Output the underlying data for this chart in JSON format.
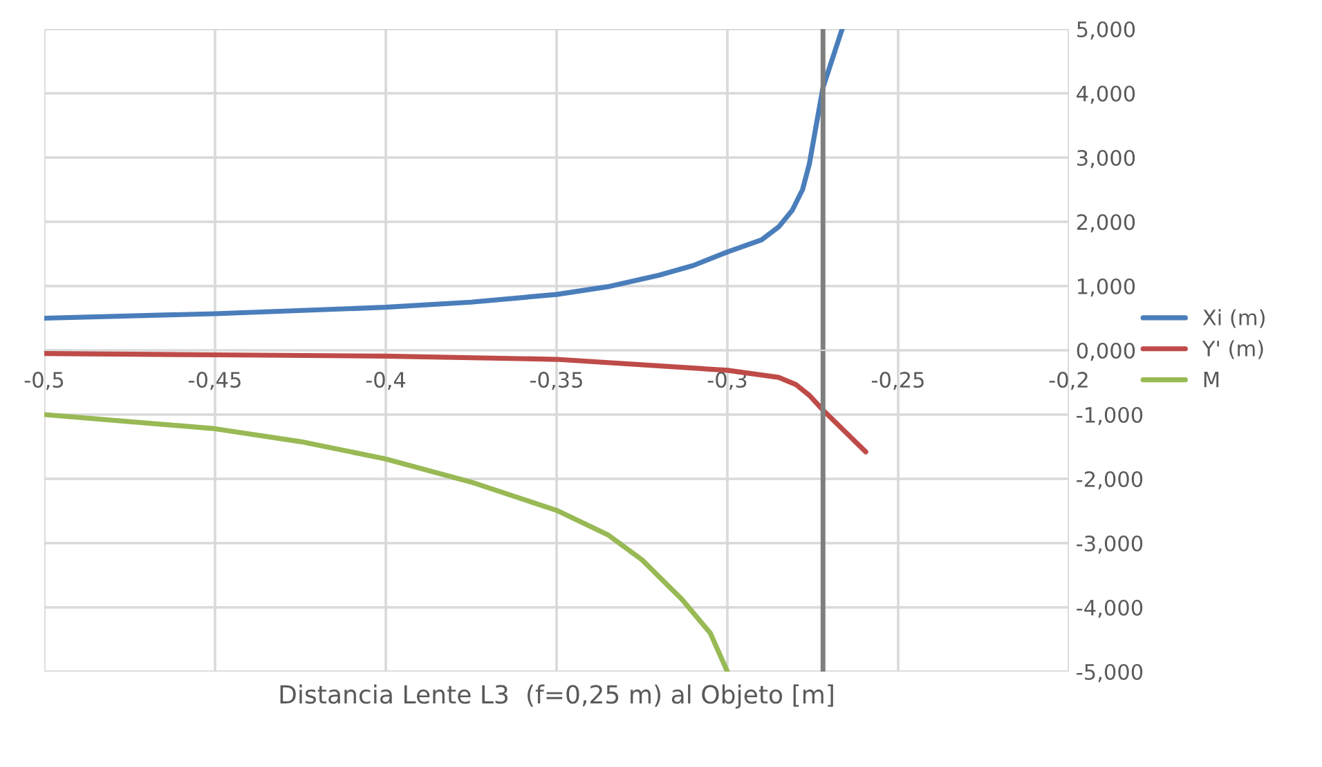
{
  "chart_data": {
    "type": "line",
    "xlabel": "Distancia Lente L3  (f=0,25 m) al Objeto [m]",
    "series": [
      {
        "name": "Xi (m)",
        "color": "#4a7ebb",
        "x": [
          -0.5,
          -0.45,
          -0.4,
          -0.375,
          -0.35,
          -0.335,
          -0.32,
          -0.31,
          -0.3,
          -0.29,
          -0.285,
          -0.281,
          -0.278,
          -0.276,
          -0.274,
          -0.272,
          -0.2664
        ],
        "values": [
          0.5,
          0.57,
          0.67,
          0.75,
          0.87,
          0.99,
          1.17,
          1.32,
          1.53,
          1.72,
          1.92,
          2.18,
          2.5,
          2.9,
          3.5,
          4.09,
          5.0
        ]
      },
      {
        "name": "Y' (m)",
        "color": "#be4b48",
        "x": [
          -0.5,
          -0.45,
          -0.4,
          -0.35,
          -0.3,
          -0.285,
          -0.28,
          -0.276,
          -0.272,
          -0.2595
        ],
        "values": [
          -0.05,
          -0.07,
          -0.09,
          -0.14,
          -0.31,
          -0.42,
          -0.53,
          -0.7,
          -0.93,
          -1.58
        ]
      },
      {
        "name": "M",
        "color": "#98b954",
        "x": [
          -0.5,
          -0.45,
          -0.425,
          -0.4,
          -0.375,
          -0.35,
          -0.335,
          -0.325,
          -0.3134,
          -0.305,
          -0.3
        ],
        "values": [
          -1.0,
          -1.22,
          -1.42,
          -1.69,
          -2.05,
          -2.49,
          -2.87,
          -3.26,
          -3.87,
          -4.4,
          -5.0
        ]
      }
    ],
    "xlim": [
      -0.5,
      -0.2
    ],
    "ylim": [
      -5,
      5
    ],
    "xticks": [
      {
        "value": -0.5,
        "label": "-0,5"
      },
      {
        "value": -0.45,
        "label": "-0,45"
      },
      {
        "value": -0.4,
        "label": "-0,4"
      },
      {
        "value": -0.35,
        "label": "-0,35"
      },
      {
        "value": -0.3,
        "label": "-0,3"
      },
      {
        "value": -0.25,
        "label": "-0,25"
      },
      {
        "value": -0.2,
        "label": "-0,2"
      }
    ],
    "yticks": [
      {
        "value": -5,
        "label": "-5,000"
      },
      {
        "value": -4,
        "label": "-4,000"
      },
      {
        "value": -3,
        "label": "-3,000"
      },
      {
        "value": -2,
        "label": "-2,000"
      },
      {
        "value": -1,
        "label": "-1,000"
      },
      {
        "value": 0,
        "label": "0,000"
      },
      {
        "value": 1,
        "label": "1,000"
      },
      {
        "value": 2,
        "label": "2,000"
      },
      {
        "value": 3,
        "label": "3,000"
      },
      {
        "value": 4,
        "label": "4,000"
      },
      {
        "value": 5,
        "label": "5,000"
      }
    ],
    "ref_lines": [
      {
        "axis": "x",
        "value": -0.272,
        "color": "#7f7f7f"
      }
    ],
    "grid": true,
    "legend": "right",
    "marker": "none",
    "line_style": "solid"
  }
}
